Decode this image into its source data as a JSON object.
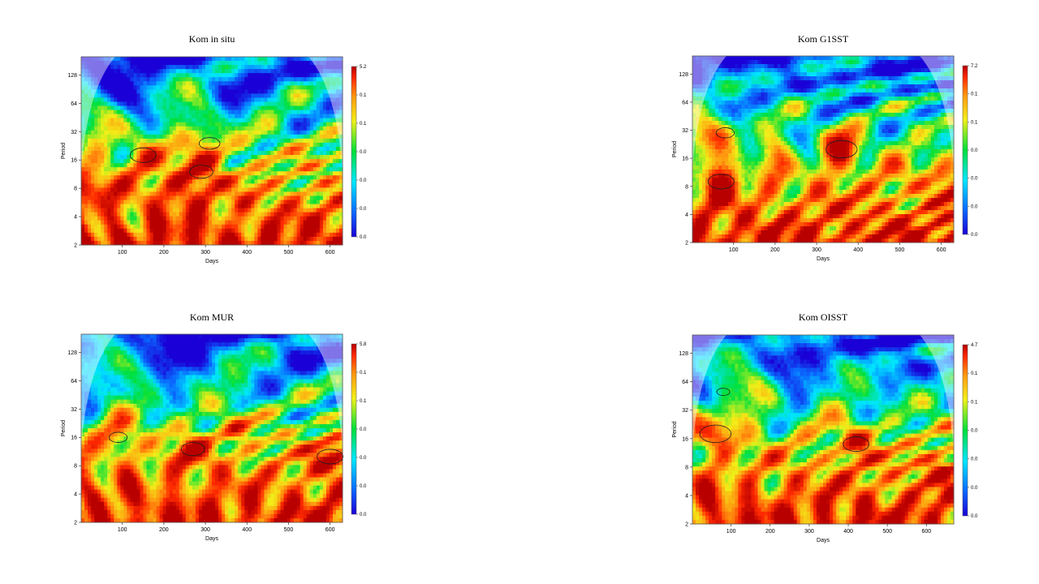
{
  "palette": [
    "#1a00d6",
    "#0a6cff",
    "#00e6ff",
    "#00e03a",
    "#f2ef18",
    "#ff9a10",
    "#ff2a00",
    "#b80000"
  ],
  "coi_color": "#ffffff",
  "contour_color": "#1e1e1e",
  "chart_data": [
    {
      "type": "heatmap",
      "title": "Kom in situ",
      "xlabel": "Days",
      "ylabel": "Period",
      "x_ticks": [
        100,
        200,
        300,
        400,
        500,
        600
      ],
      "y_ticks": [
        2,
        4,
        8,
        16,
        32,
        64,
        128
      ],
      "xlim": [
        1,
        630
      ],
      "ylim": [
        2,
        200
      ],
      "y_scale": "log2",
      "colorbar_ticks": [
        "0.0",
        "0.0",
        "0.0",
        "0.0",
        "0.1",
        "0.1",
        "5.2"
      ],
      "seed": 3,
      "hotspots": [
        [
          150,
          18,
          1.0
        ],
        [
          290,
          12,
          0.9
        ],
        [
          310,
          24,
          0.8
        ],
        [
          30,
          8,
          0.9
        ],
        [
          240,
          8,
          0.8
        ]
      ]
    },
    {
      "type": "heatmap",
      "title": "Kom G1SST",
      "xlabel": "Days",
      "ylabel": "Period",
      "x_ticks": [
        100,
        200,
        300,
        400,
        500,
        600
      ],
      "y_ticks": [
        2,
        4,
        8,
        16,
        32,
        64,
        128
      ],
      "xlim": [
        1,
        630
      ],
      "ylim": [
        2,
        200
      ],
      "y_scale": "log2",
      "colorbar_ticks": [
        "0.0",
        "0.0",
        "0.0",
        "0.0",
        "0.1",
        "0.1",
        "7.2"
      ],
      "seed": 11,
      "hotspots": [
        [
          360,
          20,
          1.2
        ],
        [
          70,
          9,
          1.0
        ],
        [
          80,
          30,
          0.7
        ],
        [
          620,
          8,
          0.6
        ]
      ]
    },
    {
      "type": "heatmap",
      "title": "Kom MUR",
      "xlabel": "Days",
      "ylabel": "Period",
      "x_ticks": [
        100,
        200,
        300,
        400,
        500,
        600
      ],
      "y_ticks": [
        2,
        4,
        8,
        16,
        32,
        64,
        128
      ],
      "xlim": [
        1,
        630
      ],
      "ylim": [
        2,
        200
      ],
      "y_scale": "log2",
      "colorbar_ticks": [
        "0.0",
        "0.0",
        "0.0",
        "0.0",
        "0.1",
        "0.1",
        "5.8"
      ],
      "seed": 23,
      "hotspots": [
        [
          270,
          12,
          0.9
        ],
        [
          600,
          10,
          1.0
        ],
        [
          90,
          16,
          0.7
        ],
        [
          380,
          20,
          0.6
        ]
      ]
    },
    {
      "type": "heatmap",
      "title": "Kom OISST",
      "xlabel": "Days",
      "ylabel": "Period",
      "x_ticks": [
        100,
        200,
        300,
        400,
        500,
        600
      ],
      "y_ticks": [
        2,
        4,
        8,
        16,
        32,
        64,
        128
      ],
      "xlim": [
        1,
        670
      ],
      "ylim": [
        2,
        200
      ],
      "y_scale": "log2",
      "colorbar_ticks": [
        "0.0",
        "0.0",
        "0.0",
        "0.0",
        "0.1",
        "0.1",
        "4.7"
      ],
      "seed": 37,
      "hotspots": [
        [
          60,
          18,
          1.2
        ],
        [
          420,
          14,
          1.0
        ],
        [
          80,
          50,
          0.5
        ],
        [
          640,
          8,
          0.7
        ]
      ]
    }
  ]
}
